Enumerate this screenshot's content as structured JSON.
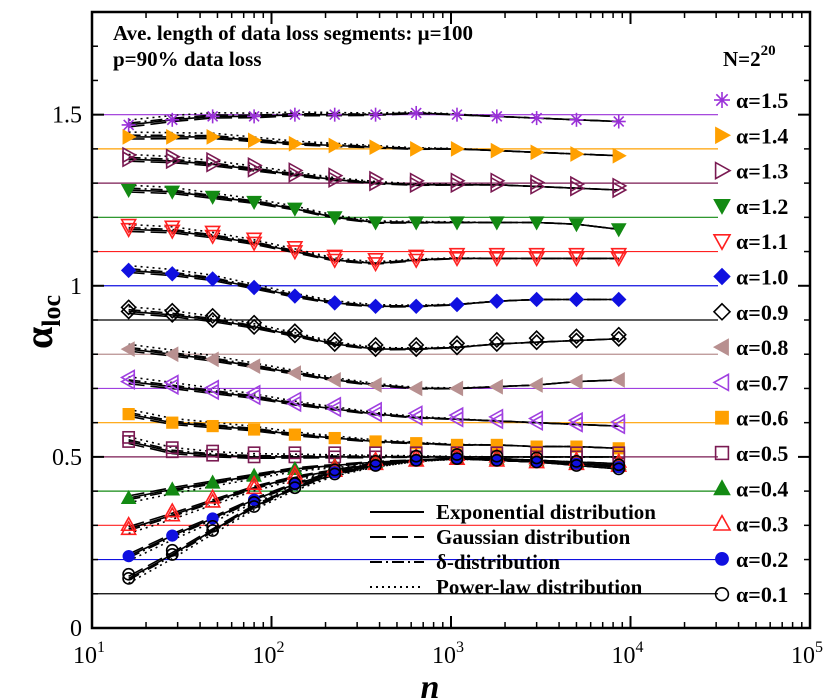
{
  "chart_data": {
    "type": "line",
    "title_line1": "Ave. length of data loss segments: μ=100",
    "title_line2": "p=90% data loss",
    "n_label": "N=2",
    "n_exponent": "20",
    "xlabel": "n",
    "ylabel_main": "α",
    "ylabel_sub": "loc",
    "xscale": "log",
    "xlim": [
      10,
      100000
    ],
    "ylim": [
      0,
      1.8
    ],
    "x_ticks": [
      {
        "base": "10",
        "exp": "1",
        "value": 10
      },
      {
        "base": "10",
        "exp": "2",
        "value": 100
      },
      {
        "base": "10",
        "exp": "3",
        "value": 1000
      },
      {
        "base": "10",
        "exp": "4",
        "value": 10000
      },
      {
        "base": "10",
        "exp": "5",
        "value": 100000
      }
    ],
    "y_ticks": [
      {
        "label": "0",
        "value": 0
      },
      {
        "label": "0.5",
        "value": 0.5
      },
      {
        "label": "1",
        "value": 1
      },
      {
        "label": "1.5",
        "value": 1.5
      }
    ],
    "line_styles": [
      {
        "label": "Exponential distribution",
        "dash": "none"
      },
      {
        "label": "Gaussian distribution",
        "dash": "16,6"
      },
      {
        "label": "δ-distribution",
        "dash": "12,4,2,4"
      },
      {
        "label": "Power-law distribution",
        "dash": "2,4"
      }
    ],
    "x": [
      16,
      28,
      47,
      80,
      135,
      225,
      380,
      640,
      1080,
      1800,
      3000,
      5000,
      8600
    ],
    "series": [
      {
        "name": "α=1.5",
        "alpha": 1.5,
        "color": "#9a30d8",
        "marker": "asterisk",
        "values": [
          1.47,
          1.485,
          1.495,
          1.495,
          1.5,
          1.5,
          1.5,
          1.505,
          1.5,
          1.495,
          1.49,
          1.485,
          1.48
        ]
      },
      {
        "name": "α=1.4",
        "alpha": 1.4,
        "color": "#ffa000",
        "marker": "triangle-right-filled",
        "values": [
          1.435,
          1.435,
          1.435,
          1.425,
          1.415,
          1.41,
          1.405,
          1.4,
          1.4,
          1.395,
          1.39,
          1.385,
          1.38
        ]
      },
      {
        "name": "α=1.3",
        "alpha": 1.3,
        "color": "#7a1a52",
        "marker": "triangle-right-open",
        "values": [
          1.37,
          1.365,
          1.355,
          1.34,
          1.325,
          1.31,
          1.3,
          1.295,
          1.295,
          1.295,
          1.29,
          1.285,
          1.28
        ]
      },
      {
        "name": "α=1.2",
        "alpha": 1.2,
        "color": "#138a13",
        "marker": "triangle-down-filled",
        "values": [
          1.28,
          1.275,
          1.26,
          1.245,
          1.225,
          1.2,
          1.185,
          1.185,
          1.185,
          1.185,
          1.185,
          1.18,
          1.165
        ]
      },
      {
        "name": "α=1.1",
        "alpha": 1.1,
        "color": "#ff2020",
        "marker": "triangle-down-open",
        "values": [
          1.165,
          1.16,
          1.145,
          1.125,
          1.1,
          1.075,
          1.065,
          1.075,
          1.08,
          1.08,
          1.08,
          1.08,
          1.08
        ]
      },
      {
        "name": "α=1.0",
        "alpha": 1.0,
        "color": "#1010e0",
        "marker": "diamond-filled",
        "values": [
          1.045,
          1.035,
          1.02,
          0.995,
          0.97,
          0.95,
          0.94,
          0.94,
          0.945,
          0.955,
          0.96,
          0.96,
          0.96
        ]
      },
      {
        "name": "α=0.9",
        "alpha": 0.9,
        "color": "#000000",
        "marker": "diamond-open",
        "values": [
          0.925,
          0.915,
          0.9,
          0.88,
          0.855,
          0.83,
          0.815,
          0.815,
          0.82,
          0.83,
          0.835,
          0.84,
          0.845
        ]
      },
      {
        "name": "α=0.8",
        "alpha": 0.8,
        "color": "#b89090",
        "marker": "triangle-left-filled",
        "values": [
          0.815,
          0.8,
          0.785,
          0.765,
          0.745,
          0.725,
          0.71,
          0.7,
          0.7,
          0.705,
          0.71,
          0.72,
          0.725
        ]
      },
      {
        "name": "α=0.7",
        "alpha": 0.7,
        "color": "#a040e0",
        "marker": "triangle-left-open",
        "values": [
          0.72,
          0.705,
          0.69,
          0.675,
          0.655,
          0.64,
          0.625,
          0.615,
          0.61,
          0.605,
          0.6,
          0.595,
          0.59
        ]
      },
      {
        "name": "α=0.6",
        "alpha": 0.6,
        "color": "#ffa000",
        "marker": "square-filled",
        "values": [
          0.625,
          0.6,
          0.59,
          0.58,
          0.565,
          0.555,
          0.545,
          0.54,
          0.535,
          0.535,
          0.53,
          0.53,
          0.525
        ]
      },
      {
        "name": "α=0.5",
        "alpha": 0.5,
        "color": "#7a1a52",
        "marker": "square-open",
        "values": [
          0.545,
          0.515,
          0.505,
          0.5,
          0.5,
          0.5,
          0.5,
          0.5,
          0.5,
          0.5,
          0.5,
          0.5,
          0.5
        ]
      },
      {
        "name": "α=0.4",
        "alpha": 0.4,
        "color": "#138a13",
        "marker": "triangle-up-filled",
        "values": [
          0.38,
          0.405,
          0.425,
          0.445,
          0.465,
          0.475,
          0.485,
          0.49,
          0.495,
          0.495,
          0.49,
          0.485,
          0.48
        ]
      },
      {
        "name": "α=0.3",
        "alpha": 0.3,
        "color": "#ff2020",
        "marker": "triangle-up-open",
        "values": [
          0.29,
          0.33,
          0.37,
          0.41,
          0.44,
          0.46,
          0.48,
          0.49,
          0.495,
          0.49,
          0.485,
          0.48,
          0.475
        ]
      },
      {
        "name": "α=0.2",
        "alpha": 0.2,
        "color": "#1010e0",
        "marker": "circle-filled",
        "values": [
          0.21,
          0.27,
          0.32,
          0.375,
          0.42,
          0.455,
          0.475,
          0.49,
          0.495,
          0.49,
          0.485,
          0.48,
          0.47
        ]
      },
      {
        "name": "α=0.1",
        "alpha": 0.1,
        "color": "#000000",
        "marker": "circle-open",
        "values": [
          0.145,
          0.215,
          0.285,
          0.355,
          0.41,
          0.45,
          0.475,
          0.49,
          0.495,
          0.49,
          0.485,
          0.475,
          0.465
        ]
      }
    ]
  }
}
